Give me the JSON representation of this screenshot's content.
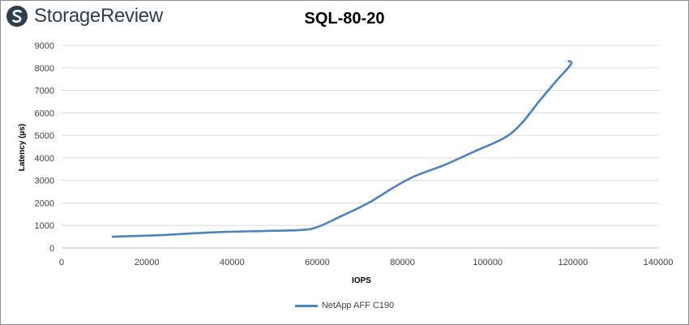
{
  "brand": {
    "name": "StorageReview"
  },
  "chart_data": {
    "type": "line",
    "title": "SQL-80-20",
    "xlabel": "IOPS",
    "ylabel": "Latency (µs)",
    "xlim": [
      0,
      140000
    ],
    "ylim": [
      0,
      9000
    ],
    "xticks": [
      0,
      20000,
      40000,
      60000,
      80000,
      100000,
      120000,
      140000
    ],
    "yticks": [
      0,
      1000,
      2000,
      3000,
      4000,
      5000,
      6000,
      7000,
      8000,
      9000
    ],
    "grid": "horizontal",
    "legend_position": "bottom",
    "series": [
      {
        "name": "NetApp AFF C190",
        "color": "#4f81bd",
        "points": [
          [
            12000,
            500
          ],
          [
            24000,
            580
          ],
          [
            36000,
            700
          ],
          [
            48000,
            760
          ],
          [
            56000,
            800
          ],
          [
            60000,
            930
          ],
          [
            66000,
            1450
          ],
          [
            72000,
            2000
          ],
          [
            78000,
            2700
          ],
          [
            83000,
            3200
          ],
          [
            90000,
            3700
          ],
          [
            97000,
            4300
          ],
          [
            104000,
            4900
          ],
          [
            108000,
            5550
          ],
          [
            112000,
            6500
          ],
          [
            116000,
            7400
          ],
          [
            119500,
            8150
          ],
          [
            119000,
            8300
          ]
        ]
      }
    ]
  },
  "colors": {
    "series": "#4f81bd",
    "grid": "#d9d9d9",
    "axis": "#bfbfbf"
  }
}
